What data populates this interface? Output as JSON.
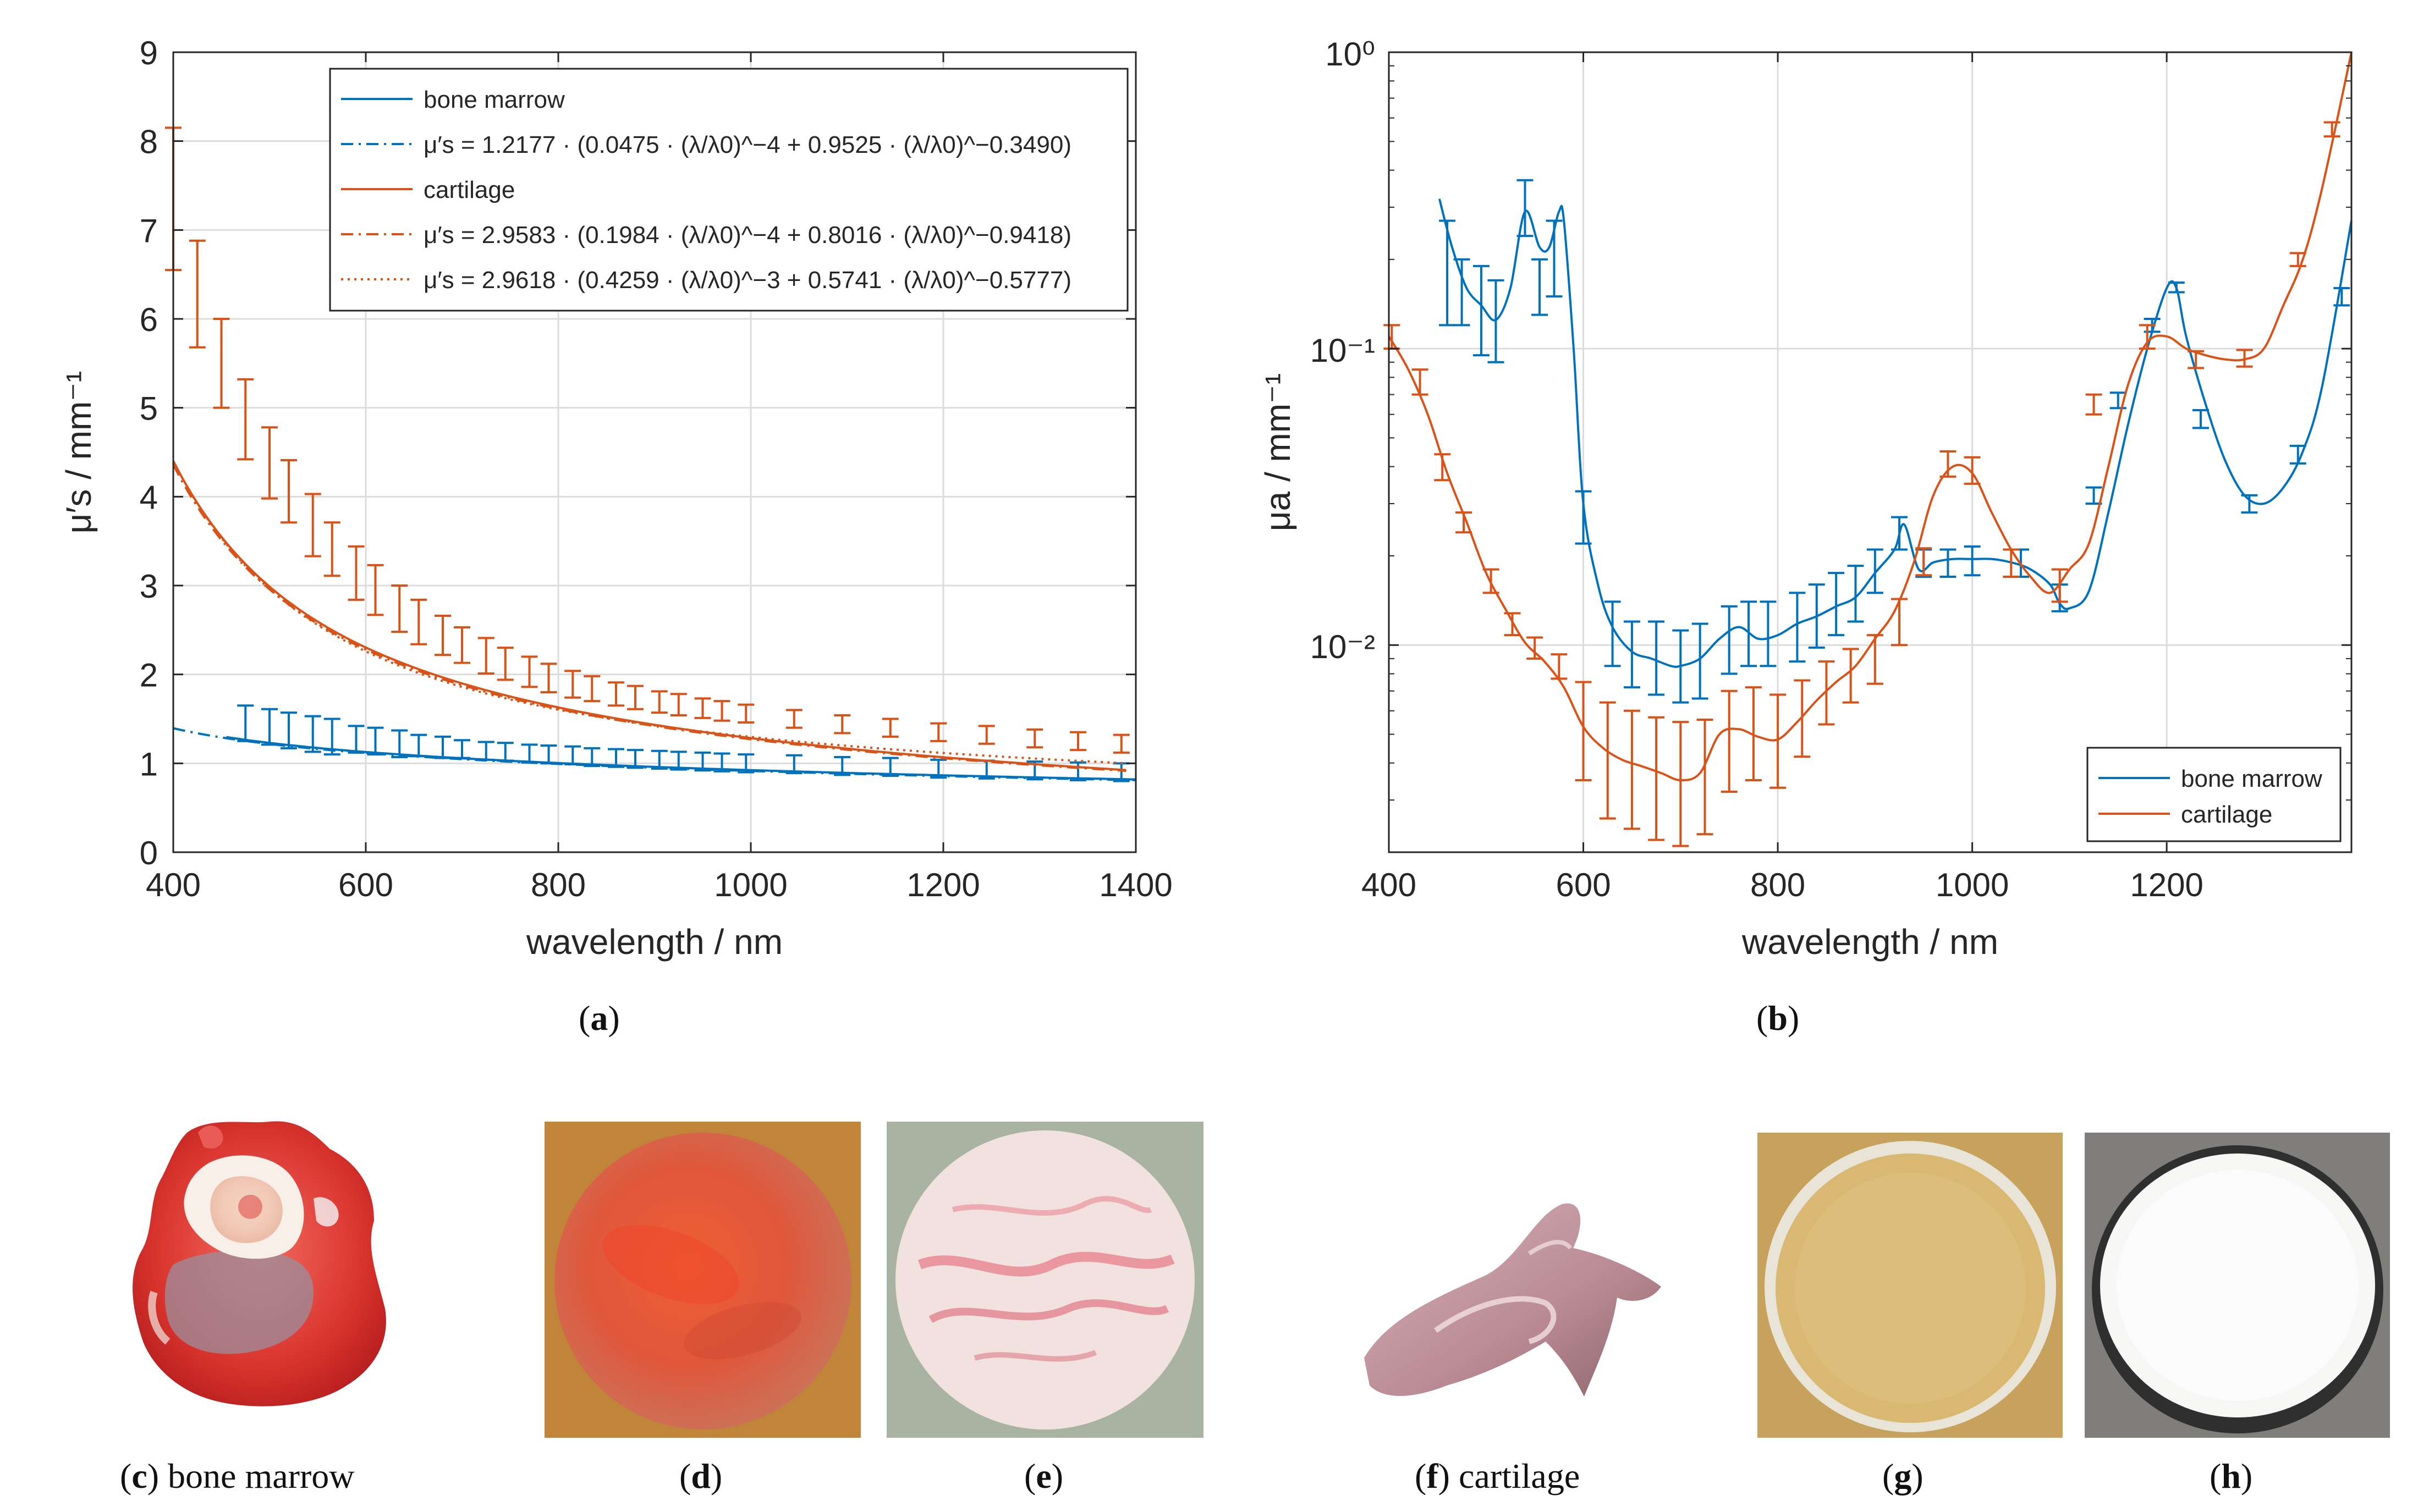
{
  "colors": {
    "bone_marrow": "#0072BD",
    "cartilage": "#D95319",
    "grid": "#dcdcdc",
    "axis": "#262626"
  },
  "captions": {
    "a": "a",
    "b": "b",
    "c_letter": "c",
    "c_text": " bone marrow",
    "d": "d",
    "e": "e",
    "f_letter": "f",
    "f_text": " cartilage",
    "g": "g",
    "h": "h"
  },
  "chart_data": [
    {
      "id": "a",
      "type": "line",
      "xlabel": "wavelength / nm",
      "ylabel": "μ′s / mm⁻¹",
      "xlim": [
        400,
        1400
      ],
      "ylim": [
        0,
        9
      ],
      "xticks": [
        400,
        600,
        800,
        1000,
        1200,
        1400
      ],
      "yticks": [
        0,
        1,
        2,
        3,
        4,
        5,
        6,
        7,
        8,
        9
      ],
      "grid": true,
      "legend_position": "top-right",
      "legend": [
        {
          "label": "bone marrow",
          "style": "solid",
          "series": "bone_marrow"
        },
        {
          "label": "μ′s = 1.2177 · (0.0475 · (λ/λ0)^−4 + 0.9525 · (λ/λ0)^−0.3490)",
          "style": "dashdot",
          "series": "bone_marrow"
        },
        {
          "label": "cartilage",
          "style": "solid",
          "series": "cartilage"
        },
        {
          "label": "μ′s = 2.9583 · (0.1984 · (λ/λ0)^−4 + 0.8016 · (λ/λ0)^−0.9418)",
          "style": "dashdot",
          "series": "cartilage"
        },
        {
          "label": "μ′s = 2.9618 · (0.4259 · (λ/λ0)^−3 + 0.5741 · (λ/λ0)^−0.5777)",
          "style": "dotted",
          "series": "cartilage"
        }
      ],
      "series": [
        {
          "name": "bone marrow",
          "key": "bone_marrow",
          "fit": {
            "A": 1.2177,
            "f": 0.0475,
            "b1": 4,
            "b2": 0.349,
            "lambda0": 500
          },
          "x_range": [
            455,
            1400
          ],
          "fit_x_range": [
            400,
            1400
          ],
          "errorbar_x": [
            475,
            500,
            520,
            545,
            565,
            590,
            610,
            635,
            655,
            680,
            700,
            725,
            745,
            770,
            790,
            815,
            835,
            860,
            880,
            905,
            925,
            950,
            970,
            995,
            1045,
            1095,
            1145,
            1195,
            1245,
            1295,
            1340,
            1385
          ],
          "errorbar_y": [
            1.45,
            1.41,
            1.37,
            1.33,
            1.3,
            1.27,
            1.25,
            1.22,
            1.2,
            1.18,
            1.16,
            1.14,
            1.13,
            1.11,
            1.1,
            1.09,
            1.07,
            1.06,
            1.05,
            1.04,
            1.03,
            1.02,
            1.01,
            1.0,
            0.99,
            0.97,
            0.96,
            0.94,
            0.93,
            0.92,
            0.91,
            0.9
          ],
          "errorbar_err": [
            0.2,
            0.2,
            0.2,
            0.2,
            0.2,
            0.15,
            0.15,
            0.15,
            0.12,
            0.12,
            0.1,
            0.1,
            0.1,
            0.1,
            0.1,
            0.1,
            0.1,
            0.1,
            0.1,
            0.1,
            0.1,
            0.1,
            0.1,
            0.1,
            0.1,
            0.1,
            0.1,
            0.1,
            0.1,
            0.1,
            0.1,
            0.1
          ]
        },
        {
          "name": "cartilage",
          "key": "cartilage",
          "fit": {
            "A": 2.9583,
            "f": 0.1984,
            "b1": 4,
            "b2": 0.9418,
            "lambda0": 500
          },
          "fit2": {
            "A": 2.9618,
            "f": 0.4259,
            "b1": 3,
            "b2": 0.5777,
            "lambda0": 500
          },
          "x_range": [
            400,
            1390
          ],
          "errorbar_x": [
            400,
            425,
            450,
            475,
            500,
            520,
            545,
            565,
            590,
            610,
            635,
            655,
            680,
            700,
            725,
            745,
            770,
            790,
            815,
            835,
            860,
            880,
            905,
            925,
            950,
            970,
            995,
            1045,
            1095,
            1145,
            1195,
            1245,
            1295,
            1340,
            1385
          ],
          "errorbar_y": [
            7.35,
            6.28,
            5.5,
            4.87,
            4.38,
            4.06,
            3.68,
            3.41,
            3.14,
            2.95,
            2.74,
            2.59,
            2.44,
            2.33,
            2.21,
            2.12,
            2.03,
            1.96,
            1.89,
            1.84,
            1.78,
            1.74,
            1.69,
            1.66,
            1.62,
            1.59,
            1.56,
            1.5,
            1.44,
            1.4,
            1.35,
            1.32,
            1.28,
            1.25,
            1.22
          ],
          "errorbar_err": [
            0.8,
            0.6,
            0.5,
            0.45,
            0.4,
            0.35,
            0.35,
            0.3,
            0.3,
            0.28,
            0.26,
            0.25,
            0.22,
            0.2,
            0.2,
            0.18,
            0.17,
            0.16,
            0.15,
            0.14,
            0.13,
            0.13,
            0.12,
            0.12,
            0.11,
            0.11,
            0.1,
            0.1,
            0.1,
            0.1,
            0.1,
            0.1,
            0.1,
            0.1,
            0.1
          ]
        }
      ]
    },
    {
      "id": "b",
      "type": "line",
      "yscale": "log",
      "xlabel": "wavelength / nm",
      "ylabel": "μa / mm⁻¹",
      "xlim": [
        400,
        1390
      ],
      "ylim": [
        0.002,
        1
      ],
      "xticks": [
        400,
        600,
        800,
        1000,
        1200
      ],
      "yticks": [
        0.01,
        0.1,
        1
      ],
      "ytick_labels": [
        "10⁻²",
        "10⁻¹",
        "10⁰"
      ],
      "grid": true,
      "legend_position": "bottom-right",
      "legend": [
        {
          "label": "bone marrow",
          "series": "bone_marrow"
        },
        {
          "label": "cartilage",
          "series": "cartilage"
        }
      ],
      "series": [
        {
          "name": "bone marrow",
          "key": "bone_marrow",
          "x": [
            452,
            465,
            480,
            495,
            510,
            525,
            540,
            555,
            565,
            575,
            580,
            590,
            600,
            615,
            630,
            650,
            670,
            690,
            700,
            720,
            740,
            760,
            780,
            800,
            820,
            840,
            860,
            880,
            900,
            920,
            930,
            945,
            960,
            980,
            1000,
            1020,
            1040,
            1060,
            1080,
            1090,
            1100,
            1120,
            1140,
            1160,
            1180,
            1200,
            1210,
            1220,
            1240,
            1260,
            1280,
            1300,
            1320,
            1340,
            1360,
            1390
          ],
          "y": [
            0.32,
            0.22,
            0.16,
            0.14,
            0.125,
            0.16,
            0.29,
            0.22,
            0.22,
            0.29,
            0.27,
            0.1,
            0.03,
            0.016,
            0.0115,
            0.0095,
            0.009,
            0.0085,
            0.0085,
            0.009,
            0.0105,
            0.0115,
            0.0105,
            0.0108,
            0.0118,
            0.0125,
            0.0135,
            0.0145,
            0.0175,
            0.021,
            0.0255,
            0.018,
            0.019,
            0.0195,
            0.0195,
            0.0195,
            0.019,
            0.018,
            0.016,
            0.0138,
            0.0133,
            0.0152,
            0.028,
            0.055,
            0.1,
            0.16,
            0.16,
            0.11,
            0.065,
            0.042,
            0.032,
            0.03,
            0.034,
            0.045,
            0.075,
            0.27
          ],
          "errorbar_x": [
            460,
            475,
            495,
            510,
            540,
            555,
            570,
            600,
            630,
            650,
            675,
            700,
            720,
            750,
            770,
            790,
            820,
            840,
            860,
            880,
            900,
            925,
            950,
            975,
            1000,
            1050,
            1090,
            1125,
            1150,
            1185,
            1210,
            1235,
            1285,
            1335,
            1380
          ],
          "errorbar_y": [
            0.19,
            0.16,
            0.14,
            0.13,
            0.29,
            0.16,
            0.2,
            0.027,
            0.011,
            0.0095,
            0.0092,
            0.0088,
            0.009,
            0.0105,
            0.011,
            0.011,
            0.0115,
            0.0125,
            0.014,
            0.015,
            0.018,
            0.024,
            0.019,
            0.019,
            0.0195,
            0.019,
            0.015,
            0.032,
            0.067,
            0.12,
            0.16,
            0.058,
            0.03,
            0.044,
            0.15
          ],
          "errorbar_lo": [
            0.12,
            0.12,
            0.095,
            0.09,
            0.24,
            0.13,
            0.15,
            0.022,
            0.0085,
            0.0072,
            0.0068,
            0.0064,
            0.0066,
            0.008,
            0.0085,
            0.0085,
            0.0088,
            0.0098,
            0.0108,
            0.012,
            0.015,
            0.021,
            0.017,
            0.017,
            0.0172,
            0.017,
            0.013,
            0.03,
            0.063,
            0.114,
            0.155,
            0.054,
            0.028,
            0.041,
            0.14
          ],
          "errorbar_hi": [
            0.27,
            0.2,
            0.19,
            0.17,
            0.37,
            0.2,
            0.27,
            0.033,
            0.014,
            0.012,
            0.012,
            0.0112,
            0.0118,
            0.0135,
            0.014,
            0.014,
            0.015,
            0.016,
            0.0175,
            0.0185,
            0.021,
            0.027,
            0.021,
            0.021,
            0.0215,
            0.021,
            0.016,
            0.034,
            0.071,
            0.126,
            0.167,
            0.062,
            0.032,
            0.047,
            0.16
          ]
        },
        {
          "name": "cartilage",
          "key": "cartilage",
          "x": [
            400,
            420,
            440,
            460,
            480,
            500,
            520,
            540,
            560,
            580,
            600,
            620,
            640,
            660,
            680,
            700,
            720,
            740,
            760,
            780,
            800,
            820,
            840,
            860,
            880,
            900,
            920,
            940,
            960,
            980,
            1000,
            1020,
            1040,
            1060,
            1080,
            1100,
            1120,
            1140,
            1160,
            1180,
            1200,
            1220,
            1240,
            1260,
            1280,
            1300,
            1320,
            1340,
            1360,
            1390
          ],
          "y": [
            0.11,
            0.085,
            0.06,
            0.038,
            0.026,
            0.0175,
            0.0132,
            0.0102,
            0.0088,
            0.0072,
            0.0053,
            0.0045,
            0.0041,
            0.0039,
            0.0037,
            0.0035,
            0.0037,
            0.005,
            0.0052,
            0.0049,
            0.0048,
            0.0055,
            0.0065,
            0.0075,
            0.0085,
            0.0105,
            0.013,
            0.019,
            0.032,
            0.04,
            0.038,
            0.028,
            0.021,
            0.017,
            0.015,
            0.018,
            0.022,
            0.04,
            0.075,
            0.105,
            0.11,
            0.1,
            0.095,
            0.092,
            0.092,
            0.1,
            0.14,
            0.2,
            0.35,
            1.0
          ],
          "errorbar_x": [
            403,
            432,
            455,
            477,
            505,
            527,
            550,
            575,
            600,
            625,
            650,
            675,
            700,
            725,
            750,
            775,
            800,
            825,
            850,
            875,
            900,
            925,
            950,
            975,
            1000,
            1040,
            1090,
            1125,
            1180,
            1230,
            1280,
            1335,
            1370
          ],
          "errorbar_y": [
            0.11,
            0.077,
            0.04,
            0.026,
            0.0165,
            0.0118,
            0.0098,
            0.0085,
            0.0052,
            0.0043,
            0.004,
            0.0038,
            0.0036,
            0.0038,
            0.005,
            0.0052,
            0.0048,
            0.0058,
            0.007,
            0.008,
            0.009,
            0.012,
            0.019,
            0.041,
            0.039,
            0.019,
            0.016,
            0.065,
            0.11,
            0.092,
            0.093,
            0.2,
            0.55
          ],
          "errorbar_lo": [
            0.1,
            0.07,
            0.036,
            0.024,
            0.015,
            0.0108,
            0.009,
            0.0077,
            0.0035,
            0.0026,
            0.0024,
            0.0022,
            0.0021,
            0.0023,
            0.0032,
            0.0035,
            0.0033,
            0.0042,
            0.0054,
            0.0064,
            0.0074,
            0.01,
            0.0172,
            0.037,
            0.035,
            0.017,
            0.014,
            0.06,
            0.1,
            0.086,
            0.087,
            0.19,
            0.52
          ],
          "errorbar_hi": [
            0.12,
            0.085,
            0.044,
            0.028,
            0.018,
            0.0128,
            0.0106,
            0.0093,
            0.0075,
            0.0064,
            0.006,
            0.0057,
            0.0055,
            0.0056,
            0.007,
            0.0072,
            0.0068,
            0.0076,
            0.0088,
            0.0097,
            0.0108,
            0.0143,
            0.0212,
            0.045,
            0.043,
            0.021,
            0.018,
            0.07,
            0.12,
            0.098,
            0.099,
            0.21,
            0.58
          ]
        }
      ]
    }
  ]
}
